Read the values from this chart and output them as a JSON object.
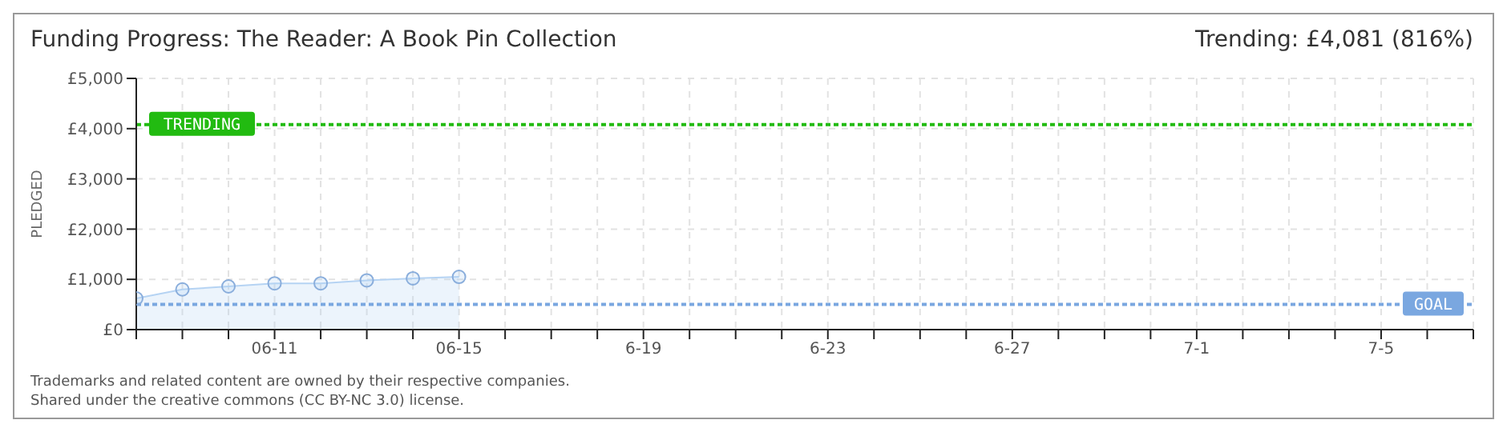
{
  "chart_data": {
    "type": "area",
    "title": "Funding Progress: The Reader: A Book Pin Collection",
    "subtitle": "Trending: £4,081 (816%)",
    "ylabel": "PLEDGED",
    "categories": [
      null,
      null,
      null,
      "06-11",
      null,
      null,
      null,
      "06-15",
      null,
      null,
      null,
      "6-19",
      null,
      null,
      null,
      "6-23",
      null,
      null,
      null,
      "6-27",
      null,
      null,
      null,
      "7-1",
      null,
      null,
      null,
      "7-5",
      null,
      null
    ],
    "series": [
      {
        "color": "#b5d3f3",
        "values": [
          620,
          800,
          860,
          920,
          920,
          980,
          1020,
          1050,
          null,
          null,
          null,
          null,
          null,
          null,
          null,
          null,
          null,
          null,
          null,
          null,
          null,
          null,
          null,
          null,
          null,
          null,
          null,
          null,
          null,
          null
        ]
      }
    ],
    "ylim": [
      0,
      5000
    ],
    "yticks": [
      {
        "value": 0,
        "label": "£0"
      },
      {
        "value": 1000,
        "label": "£1,000"
      },
      {
        "value": 2000,
        "label": "£2,000"
      },
      {
        "value": 3000,
        "label": "£3,000"
      },
      {
        "value": 4000,
        "label": "£4,000"
      },
      {
        "value": 5000,
        "label": "£5,000"
      }
    ],
    "ref_lines": [
      {
        "axis": "y",
        "value": 4081,
        "label": "TRENDING",
        "color": "#22bb11",
        "line_style": "dotted"
      },
      {
        "axis": "y",
        "value": 500,
        "label": "GOAL",
        "color": "#7aa7e0",
        "line_style": "dotted"
      }
    ],
    "grid": true,
    "marker": "circle",
    "annotations": [
      "Trademarks and related content are owned by their respective companies.",
      "Shared under the creative commons (CC BY-NC 3.0) license."
    ]
  }
}
